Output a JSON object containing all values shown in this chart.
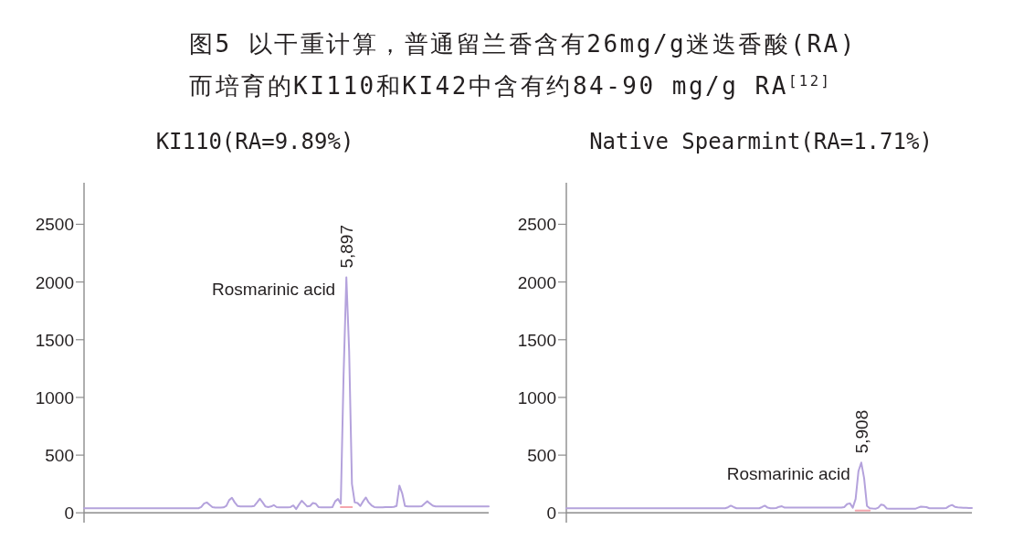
{
  "chart_data": [
    {
      "type": "other",
      "title": "图5 以干重计算，普通留兰香含有26mg/g迷迭香酸(RA)",
      "subtitle": "而培育的KI110和KI42中含有约84-90 mg/g RA$^{[12]}$"
    },
    {
      "type": "line",
      "title": "KI110(RA=9.89%)",
      "categories": [
        null,
        null,
        null,
        null,
        null,
        null,
        null,
        null,
        null,
        null,
        null,
        null,
        null,
        null,
        null,
        null,
        null,
        null,
        null,
        null,
        null,
        null,
        null,
        null,
        null,
        null,
        null,
        null,
        null,
        null,
        null,
        null,
        null,
        null,
        null,
        null,
        null,
        null,
        null,
        null,
        null,
        null,
        null,
        null,
        null,
        null,
        null,
        null,
        null,
        null,
        null,
        null,
        null,
        null,
        null,
        null,
        null,
        null,
        null,
        null,
        null,
        null,
        null,
        null,
        null,
        null,
        null,
        null,
        null,
        null,
        null,
        null,
        null,
        null,
        null,
        null,
        null,
        null,
        null,
        null,
        null,
        null,
        null,
        null,
        null,
        null,
        null,
        null,
        null,
        null,
        null,
        null,
        null,
        null,
        null,
        null,
        null,
        null,
        null,
        null,
        null,
        null,
        null,
        null,
        null,
        null,
        null,
        null,
        null,
        null,
        null,
        null,
        null,
        null,
        null,
        null,
        null,
        null,
        null,
        null,
        null,
        null,
        null,
        null,
        null,
        null,
        null,
        null,
        null,
        null,
        null,
        null,
        null,
        null,
        null,
        null,
        null,
        null,
        null,
        null,
        null,
        null,
        null,
        null,
        null,
        null
      ],
      "series": [
        {
          "color": "#b4a2dc",
          "values": [
            40,
            40,
            40,
            40,
            40,
            40,
            40,
            40,
            40,
            40,
            40,
            40,
            40,
            40,
            40,
            40,
            40,
            40,
            40,
            40,
            40,
            40,
            40,
            40,
            40,
            40,
            40,
            40,
            40,
            40,
            40,
            40,
            40,
            40,
            40,
            40,
            40,
            40,
            40,
            40,
            40,
            40,
            50,
            80,
            90,
            70,
            50,
            45,
            45,
            45,
            47,
            60,
            110,
            130,
            90,
            60,
            55,
            55,
            55,
            55,
            55,
            60,
            90,
            122,
            90,
            55,
            50,
            55,
            67,
            50,
            47,
            47,
            47,
            47,
            50,
            64,
            33,
            70,
            105,
            80,
            55,
            60,
            85,
            80,
            50,
            47,
            47,
            47,
            47,
            50,
            100,
            120,
            80,
            1190,
            2040,
            1400,
            250,
            90,
            85,
            60,
            100,
            133,
            90,
            65,
            50,
            47,
            47,
            47,
            50,
            50,
            50,
            52,
            60,
            236,
            170,
            60,
            55,
            55,
            55,
            55,
            55,
            57,
            80,
            100,
            80,
            62,
            55,
            55,
            55,
            55,
            55,
            55,
            55,
            55,
            55,
            55,
            55,
            55,
            55,
            55,
            55,
            55,
            55,
            55,
            55,
            55
          ]
        },
        {
          "color": "#f4a6ad",
          "values": [
            null,
            null,
            null,
            null,
            null,
            null,
            null,
            null,
            null,
            null,
            null,
            null,
            null,
            null,
            null,
            null,
            null,
            null,
            null,
            null,
            null,
            null,
            null,
            null,
            null,
            null,
            null,
            null,
            null,
            null,
            null,
            null,
            null,
            null,
            null,
            null,
            null,
            null,
            null,
            null,
            null,
            null,
            null,
            null,
            null,
            null,
            null,
            null,
            null,
            null,
            null,
            null,
            null,
            null,
            null,
            null,
            null,
            null,
            null,
            null,
            null,
            null,
            null,
            null,
            null,
            null,
            null,
            null,
            null,
            null,
            null,
            null,
            null,
            null,
            null,
            null,
            null,
            null,
            null,
            null,
            null,
            null,
            null,
            null,
            null,
            null,
            null,
            null,
            null,
            null,
            null,
            null,
            50,
            50,
            50,
            50,
            50,
            null,
            null,
            null,
            null,
            null,
            null,
            null,
            null,
            null,
            null,
            null,
            null,
            null,
            null,
            null,
            null,
            null,
            null,
            null,
            null,
            null,
            null,
            null,
            null,
            null,
            null,
            null,
            null,
            null,
            null,
            null,
            null,
            null,
            null,
            null,
            null,
            null,
            null,
            null,
            null,
            null,
            null,
            null,
            null,
            null,
            null,
            null,
            null,
            null
          ]
        }
      ],
      "ylim": [
        -85,
        2860
      ],
      "yticks": [
        0,
        500,
        1000,
        1500,
        2000,
        2500
      ],
      "tick_labels": "y",
      "ref_lines": [
        {
          "axis": "y",
          "value": 0,
          "color": "#8c8c8c"
        }
      ],
      "annotations": [
        "Rosmarinic acid",
        "5,897"
      ]
    },
    {
      "type": "line",
      "title": "Native Spearmint(RA=1.71%)",
      "categories": [
        null,
        null,
        null,
        null,
        null,
        null,
        null,
        null,
        null,
        null,
        null,
        null,
        null,
        null,
        null,
        null,
        null,
        null,
        null,
        null,
        null,
        null,
        null,
        null,
        null,
        null,
        null,
        null,
        null,
        null,
        null,
        null,
        null,
        null,
        null,
        null,
        null,
        null,
        null,
        null,
        null,
        null,
        null,
        null,
        null,
        null,
        null,
        null,
        null,
        null,
        null,
        null,
        null,
        null,
        null,
        null,
        null,
        null,
        null,
        null,
        null,
        null,
        null,
        null,
        null,
        null,
        null,
        null,
        null,
        null,
        null,
        null,
        null,
        null,
        null,
        null,
        null,
        null,
        null,
        null,
        null,
        null,
        null,
        null,
        null,
        null,
        null,
        null,
        null,
        null,
        null,
        null,
        null,
        null,
        null,
        null,
        null,
        null,
        null,
        null,
        null,
        null,
        null,
        null,
        null,
        null,
        null,
        null,
        null,
        null,
        null,
        null,
        null,
        null,
        null,
        null,
        null,
        null,
        null,
        null,
        null,
        null,
        null,
        null,
        null,
        null,
        null,
        null,
        null,
        null,
        null,
        null,
        null,
        null,
        null,
        null,
        null,
        null,
        null,
        null,
        null,
        null,
        null,
        null
      ],
      "series": [
        {
          "color": "#b4a2dc",
          "values": [
            40,
            40,
            40,
            40,
            40,
            40,
            40,
            40,
            40,
            40,
            40,
            40,
            40,
            40,
            40,
            40,
            40,
            40,
            40,
            40,
            40,
            40,
            40,
            40,
            40,
            40,
            40,
            40,
            40,
            40,
            40,
            40,
            40,
            40,
            40,
            40,
            40,
            40,
            40,
            40,
            40,
            40,
            40,
            40,
            40,
            40,
            40,
            40,
            40,
            40,
            40,
            40,
            40,
            40,
            40,
            40,
            40,
            48,
            62,
            50,
            40,
            40,
            40,
            40,
            40,
            40,
            40,
            40,
            40,
            50,
            62,
            45,
            40,
            40,
            42,
            52,
            57,
            45,
            45,
            45,
            45,
            45,
            45,
            45,
            45,
            45,
            45,
            45,
            45,
            45,
            45,
            45,
            45,
            45,
            45,
            45,
            45,
            45,
            50,
            75,
            82,
            45,
            120,
            360,
            435,
            300,
            60,
            40,
            37,
            35,
            45,
            72,
            65,
            38,
            35,
            35,
            35,
            35,
            35,
            35,
            35,
            35,
            35,
            35,
            45,
            54,
            52,
            50,
            40,
            40,
            40,
            40,
            40,
            40,
            42,
            58,
            68,
            52,
            48,
            46,
            44,
            43,
            42,
            42
          ]
        },
        {
          "color": "#f4a6ad",
          "values": [
            null,
            null,
            null,
            null,
            null,
            null,
            null,
            null,
            null,
            null,
            null,
            null,
            null,
            null,
            null,
            null,
            null,
            null,
            null,
            null,
            null,
            null,
            null,
            null,
            null,
            null,
            null,
            null,
            null,
            null,
            null,
            null,
            null,
            null,
            null,
            null,
            null,
            null,
            null,
            null,
            null,
            null,
            null,
            null,
            null,
            null,
            null,
            null,
            null,
            null,
            null,
            null,
            null,
            null,
            null,
            null,
            null,
            null,
            null,
            null,
            null,
            null,
            null,
            null,
            null,
            null,
            null,
            null,
            null,
            null,
            null,
            null,
            null,
            null,
            null,
            null,
            null,
            null,
            null,
            null,
            null,
            null,
            null,
            null,
            null,
            null,
            null,
            null,
            null,
            null,
            null,
            null,
            null,
            null,
            null,
            null,
            null,
            null,
            null,
            null,
            null,
            null,
            20,
            20,
            20,
            20,
            20,
            20,
            null,
            null,
            null,
            null,
            null,
            null,
            null,
            null,
            null,
            null,
            null,
            null,
            null,
            null,
            null,
            null,
            null,
            null,
            null,
            null,
            null,
            null,
            null,
            null,
            null,
            null,
            null,
            null,
            null,
            null,
            null,
            null,
            null,
            null,
            null,
            null
          ]
        }
      ],
      "ylim": [
        -85,
        2860
      ],
      "yticks": [
        0,
        500,
        1000,
        1500,
        2000,
        2500
      ],
      "tick_labels": "y",
      "ref_lines": [
        {
          "axis": "y",
          "value": 0,
          "color": "#8c8c8c"
        }
      ],
      "annotations": [
        "Rosmarinic acid",
        "5,908"
      ]
    }
  ]
}
